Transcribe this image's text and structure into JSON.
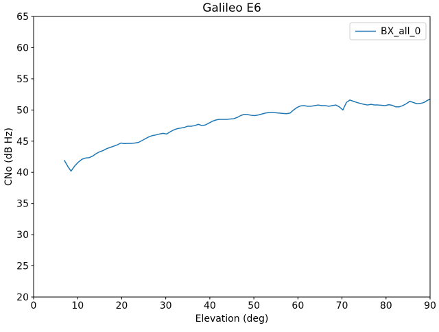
{
  "figure": {
    "title": "Galileo E6",
    "background_color": "#ffffff",
    "spine_color": "#000000"
  },
  "chart_data": {
    "type": "line",
    "title": "Galileo E6",
    "xlabel": "Elevation (deg)",
    "ylabel": "CNo (dB Hz)",
    "xlim": [
      0,
      90
    ],
    "ylim": [
      20,
      65
    ],
    "xticks": [
      0,
      10,
      20,
      30,
      40,
      50,
      60,
      70,
      80,
      90
    ],
    "yticks": [
      20,
      25,
      30,
      35,
      40,
      45,
      50,
      55,
      60,
      65
    ],
    "grid": false,
    "legend": {
      "position": "upper right",
      "entries": [
        {
          "label": "BX_all_0",
          "color": "#1f77b4"
        }
      ]
    },
    "series": [
      {
        "name": "BX_all_0",
        "color": "#1f77b4",
        "line_width": 1.5,
        "x": [
          7.0,
          7.8,
          8.5,
          9.3,
          10.1,
          11.0,
          11.8,
          12.6,
          13.4,
          14.2,
          15.0,
          15.8,
          16.6,
          17.4,
          18.2,
          19.0,
          19.8,
          20.6,
          21.4,
          22.2,
          23.0,
          23.8,
          24.6,
          25.4,
          26.2,
          27.0,
          27.8,
          28.6,
          29.4,
          30.2,
          31.0,
          31.8,
          32.6,
          33.4,
          34.2,
          35.0,
          35.8,
          36.6,
          37.4,
          38.2,
          39.0,
          39.8,
          40.6,
          41.4,
          42.2,
          43.0,
          43.8,
          44.6,
          45.4,
          46.2,
          47.0,
          47.8,
          48.6,
          49.4,
          50.2,
          51.0,
          51.8,
          52.6,
          53.4,
          54.2,
          55.0,
          55.8,
          56.6,
          57.4,
          58.2,
          59.0,
          59.8,
          60.6,
          61.4,
          62.2,
          63.0,
          63.8,
          64.6,
          65.4,
          66.2,
          67.0,
          67.8,
          68.6,
          69.4,
          70.2,
          71.0,
          71.8,
          72.6,
          73.4,
          74.2,
          75.0,
          75.8,
          76.6,
          77.4,
          78.2,
          79.0,
          79.8,
          80.6,
          81.4,
          82.2,
          83.0,
          83.8,
          84.6,
          85.4,
          86.2,
          87.0,
          87.8,
          88.6,
          89.3,
          90.0
        ],
        "y": [
          41.9,
          40.9,
          40.2,
          41.0,
          41.6,
          42.1,
          42.3,
          42.35,
          42.6,
          43.0,
          43.3,
          43.5,
          43.8,
          44.0,
          44.2,
          44.4,
          44.7,
          44.6,
          44.65,
          44.65,
          44.7,
          44.8,
          45.1,
          45.4,
          45.7,
          45.9,
          46.0,
          46.15,
          46.25,
          46.15,
          46.5,
          46.8,
          47.0,
          47.1,
          47.2,
          47.4,
          47.4,
          47.5,
          47.7,
          47.5,
          47.6,
          47.9,
          48.2,
          48.4,
          48.5,
          48.5,
          48.5,
          48.55,
          48.6,
          48.8,
          49.1,
          49.3,
          49.25,
          49.15,
          49.1,
          49.2,
          49.35,
          49.5,
          49.6,
          49.6,
          49.55,
          49.5,
          49.45,
          49.4,
          49.5,
          50.0,
          50.4,
          50.65,
          50.7,
          50.6,
          50.6,
          50.7,
          50.8,
          50.7,
          50.7,
          50.6,
          50.7,
          50.8,
          50.5,
          50.0,
          51.2,
          51.6,
          51.4,
          51.2,
          51.05,
          50.9,
          50.8,
          50.9,
          50.8,
          50.8,
          50.75,
          50.7,
          50.85,
          50.75,
          50.5,
          50.5,
          50.7,
          51.0,
          51.4,
          51.2,
          51.0,
          51.05,
          51.2,
          51.5,
          51.75
        ]
      }
    ]
  }
}
